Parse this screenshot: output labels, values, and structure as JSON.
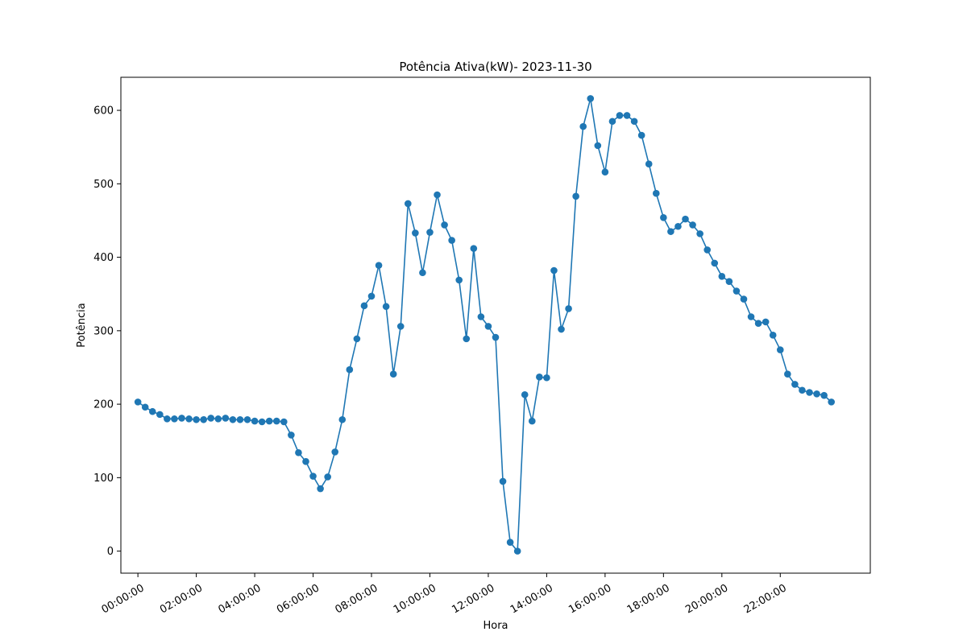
{
  "chart_data": {
    "type": "line",
    "title": "Potência Ativa(kW)- 2023-11-30",
    "xlabel": "Hora",
    "ylabel": "Potência",
    "x_tick_labels": [
      "00:00:00",
      "02:00:00",
      "04:00:00",
      "06:00:00",
      "08:00:00",
      "10:00:00",
      "12:00:00",
      "14:00:00",
      "16:00:00",
      "18:00:00",
      "20:00:00",
      "22:00:00"
    ],
    "y_ticks": [
      0,
      100,
      200,
      300,
      400,
      500,
      600
    ],
    "ylim": [
      -30,
      645
    ],
    "xlim": [
      "-00:35:00",
      "25:05:00"
    ],
    "x_interval_minutes": 15,
    "markers": true,
    "grid": false,
    "color": "#1f77b4",
    "series": [
      {
        "x": [
          "00:00:00",
          "00:15:00",
          "00:30:00",
          "00:45:00",
          "01:00:00",
          "01:15:00",
          "01:30:00",
          "01:45:00",
          "02:00:00",
          "02:15:00",
          "02:30:00",
          "02:45:00",
          "03:00:00",
          "03:15:00",
          "03:30:00",
          "03:45:00",
          "04:00:00",
          "04:15:00",
          "04:30:00",
          "04:45:00",
          "05:00:00",
          "05:15:00",
          "05:30:00",
          "05:45:00",
          "06:00:00",
          "06:15:00",
          "06:30:00",
          "06:45:00",
          "07:00:00",
          "07:15:00",
          "07:30:00",
          "07:45:00",
          "08:00:00",
          "08:15:00",
          "08:30:00",
          "08:45:00",
          "09:00:00",
          "09:15:00",
          "09:30:00",
          "09:45:00",
          "10:00:00",
          "10:15:00",
          "10:30:00",
          "10:45:00",
          "11:00:00",
          "11:15:00",
          "11:30:00",
          "11:45:00",
          "12:00:00",
          "12:15:00",
          "12:30:00",
          "12:45:00",
          "13:00:00",
          "13:15:00",
          "13:30:00",
          "13:45:00",
          "14:00:00",
          "14:15:00",
          "14:30:00",
          "14:45:00",
          "15:00:00",
          "15:15:00",
          "15:30:00",
          "15:45:00",
          "16:00:00",
          "16:15:00",
          "16:30:00",
          "16:45:00",
          "17:00:00",
          "17:15:00",
          "17:30:00",
          "17:45:00",
          "18:00:00",
          "18:15:00",
          "18:30:00",
          "18:45:00",
          "19:00:00",
          "19:15:00",
          "19:30:00",
          "19:45:00",
          "20:00:00",
          "20:15:00",
          "20:30:00",
          "20:45:00",
          "21:00:00",
          "21:15:00",
          "21:30:00",
          "21:45:00",
          "22:00:00",
          "22:15:00",
          "22:30:00",
          "22:45:00",
          "23:00:00",
          "23:15:00",
          "23:30:00",
          "23:45:00"
        ],
        "values": [
          203,
          196,
          190,
          186,
          180,
          180,
          181,
          180,
          179,
          179,
          181,
          180,
          181,
          179,
          179,
          179,
          177,
          176,
          177,
          177,
          176,
          158,
          134,
          122,
          102,
          85,
          101,
          135,
          179,
          247,
          289,
          334,
          347,
          389,
          333,
          241,
          306,
          473,
          433,
          379,
          434,
          485,
          444,
          423,
          369,
          289,
          412,
          319,
          306,
          291,
          95,
          12,
          0,
          213,
          177,
          237,
          236,
          382,
          302,
          330,
          483,
          578,
          616,
          552,
          516,
          585,
          593,
          593,
          585,
          566,
          527,
          487,
          454,
          435,
          442,
          452,
          444,
          432,
          410,
          392,
          374,
          367,
          354,
          343,
          319,
          310,
          312,
          294,
          274,
          241,
          227,
          219,
          216,
          214,
          212,
          203
        ]
      }
    ]
  }
}
